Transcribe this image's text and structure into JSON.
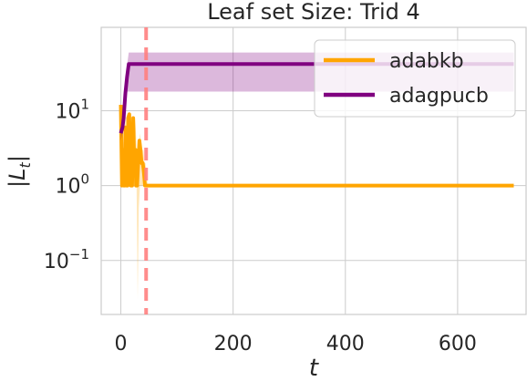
{
  "chart_data": {
    "type": "line",
    "title": "Leaf set Size: Trid 4",
    "xlabel": "t",
    "ylabel": "|L_t|",
    "xlim": [
      -35,
      722
    ],
    "ylim": [
      0.019,
      130
    ],
    "yscale": "log",
    "grid": true,
    "legend_position": "top-right",
    "x_ticks": [
      0,
      200,
      400,
      600
    ],
    "x_tick_labels": [
      "0",
      "200",
      "400",
      "600"
    ],
    "y_ticks": [
      0.1,
      1,
      10
    ],
    "y_tick_labels": [
      {
        "base": "10",
        "exp": "−1"
      },
      {
        "base": "10",
        "exp": "0"
      },
      {
        "base": "10",
        "exp": "1"
      }
    ],
    "vline": {
      "x": 45,
      "color": "#ff8080",
      "style": "dashed"
    },
    "series": [
      {
        "name": "adabkb",
        "color": "#ffa500",
        "band": {
          "x": [
            0,
            2,
            5,
            8,
            10,
            12,
            14,
            16,
            18,
            20,
            22,
            24,
            26,
            28,
            30,
            32,
            34,
            36,
            38,
            40,
            42,
            44,
            46,
            48,
            50,
            700
          ],
          "upper": [
            12,
            6,
            2,
            12,
            3,
            2,
            10,
            4,
            2,
            9,
            3,
            2,
            8,
            3,
            2,
            3,
            5,
            4,
            3,
            3,
            2,
            2,
            1.5,
            1,
            1,
            1
          ],
          "lower": [
            1,
            1,
            1,
            1,
            1,
            1,
            1,
            1,
            1,
            1,
            1,
            1,
            1,
            1,
            0.03,
            0.5,
            1,
            1,
            1,
            1,
            1,
            1,
            1,
            1,
            1,
            1
          ]
        },
        "x": [
          0,
          2,
          4,
          5,
          7,
          8,
          10,
          12,
          13,
          15,
          17,
          18,
          20,
          22,
          24,
          26,
          27,
          29,
          31,
          33,
          35,
          37,
          39,
          41,
          43,
          45,
          48,
          50,
          700
        ],
        "y": [
          12,
          1,
          3,
          1,
          1,
          6,
          1,
          1,
          8,
          9,
          2,
          1,
          1,
          8,
          2,
          3,
          1,
          1,
          2,
          4,
          3,
          2,
          2,
          1.5,
          1,
          1,
          1,
          1,
          1
        ]
      },
      {
        "name": "adagpucb",
        "color": "#800080",
        "band": {
          "x": [
            0,
            3,
            6,
            8,
            10,
            14,
            700
          ],
          "upper": [
            5,
            6,
            10,
            20,
            35,
            60,
            60
          ]
        },
        "band_lower": [
          4,
          5,
          8,
          18,
          18,
          18,
          18
        ],
        "x": [
          0,
          3,
          5,
          8,
          11,
          14,
          700
        ],
        "y": [
          5,
          6,
          8,
          17,
          28,
          42,
          42
        ]
      }
    ]
  }
}
